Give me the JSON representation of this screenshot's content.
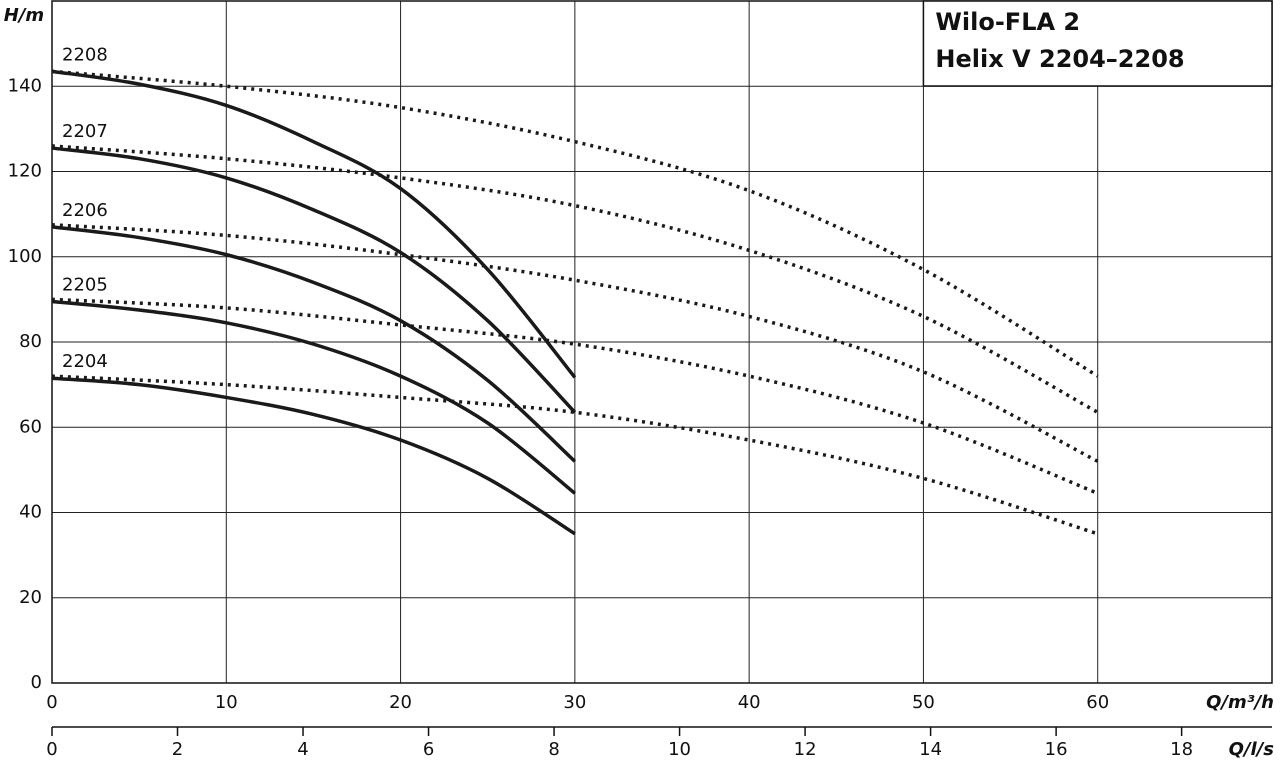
{
  "chart_data": {
    "type": "line",
    "title": "Wilo-FLA 2",
    "subtitle": "Helix V 2204–2208",
    "y_label": "H/m",
    "x_label": "Q/m³/h",
    "x2_label": "Q/l/s",
    "x": [
      0,
      5,
      10,
      15,
      20,
      25,
      30
    ],
    "x_extended": [
      0,
      10,
      20,
      30,
      40,
      50,
      60
    ],
    "xlim": [
      0,
      70
    ],
    "xticks": [
      0,
      10,
      20,
      30,
      40,
      50,
      60
    ],
    "x2lim": [
      0,
      19.44
    ],
    "x2ticks": [
      0,
      2,
      4,
      6,
      8,
      10,
      12,
      14,
      16,
      18
    ],
    "ylim": [
      0,
      160
    ],
    "yticks": [
      0,
      20,
      40,
      60,
      80,
      100,
      120,
      140
    ],
    "grid": true,
    "series": [
      {
        "name": "2208",
        "color": "#1a1a1a",
        "values": [
          143.5,
          140.5,
          135.5,
          127,
          116,
          97,
          71.7
        ],
        "values_extended": [
          143.5,
          140,
          135,
          127,
          115.5,
          97,
          72
        ]
      },
      {
        "name": "2207",
        "color": "#1a1a1a",
        "values": [
          125.5,
          123,
          118.5,
          111,
          101,
          85,
          63.5
        ],
        "values_extended": [
          126,
          123,
          118.5,
          112,
          101.5,
          86,
          63.5
        ]
      },
      {
        "name": "2206",
        "color": "#1a1a1a",
        "values": [
          107,
          104.5,
          100.5,
          94,
          85,
          71,
          52
        ],
        "values_extended": [
          107.5,
          105,
          100.5,
          94.5,
          86,
          73,
          52
        ]
      },
      {
        "name": "2205",
        "color": "#1a1a1a",
        "values": [
          89.5,
          87.5,
          84.5,
          79.5,
          72,
          61,
          44.5
        ],
        "values_extended": [
          90,
          88,
          84,
          79.5,
          72,
          61,
          44.5
        ]
      },
      {
        "name": "2204",
        "color": "#1a1a1a",
        "values": [
          71.5,
          70,
          67,
          63,
          57,
          48,
          35
        ],
        "values_extended": [
          72,
          70,
          67,
          63.5,
          57,
          48,
          35
        ]
      }
    ]
  }
}
